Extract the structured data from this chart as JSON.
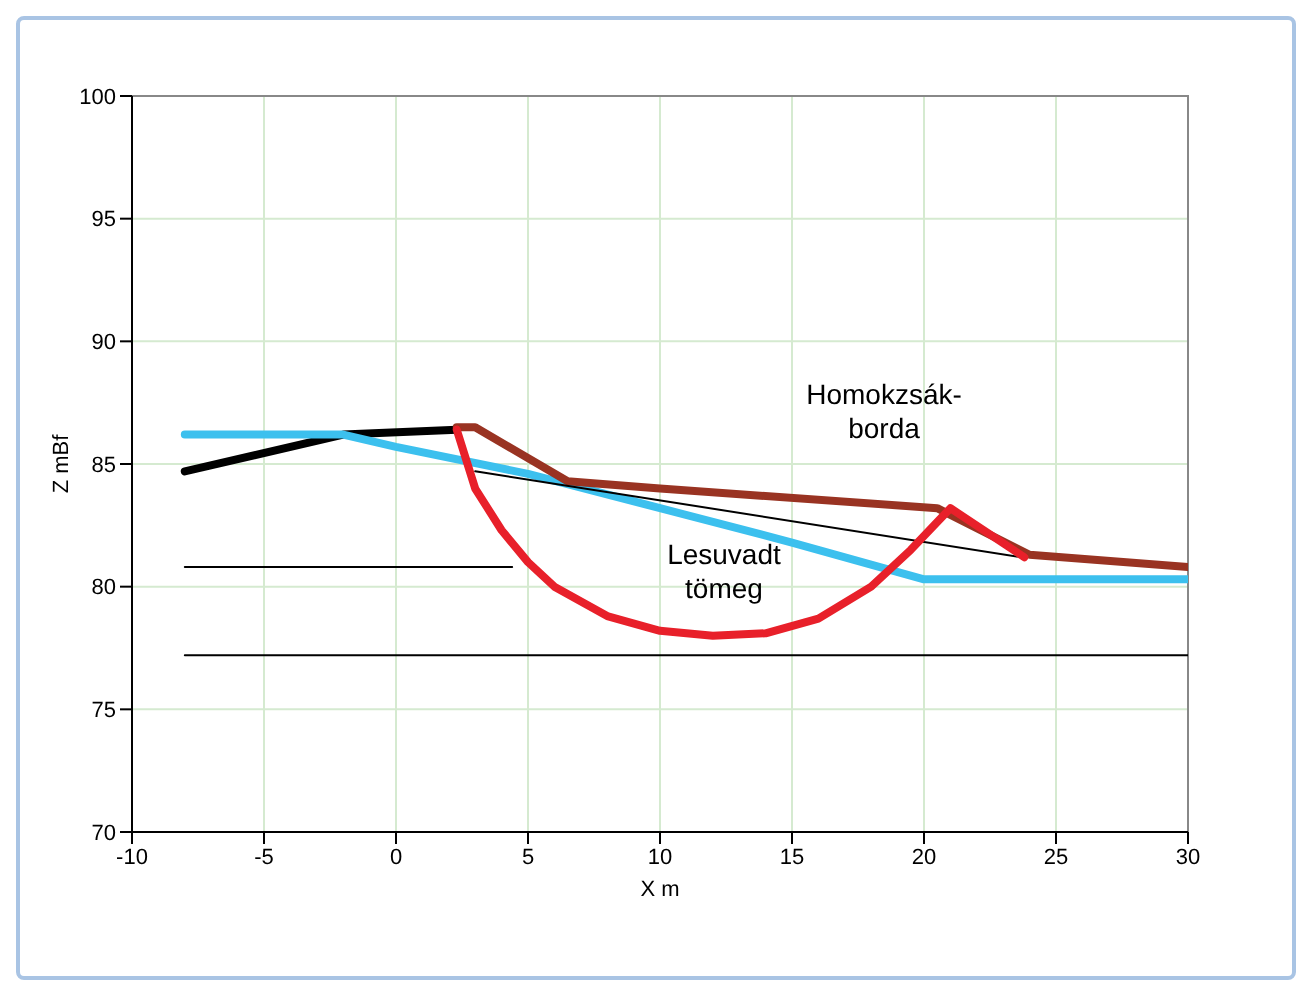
{
  "chart_data": {
    "type": "line",
    "xlabel": "X  m",
    "ylabel": "Z  mBf",
    "xlim": [
      -10,
      30
    ],
    "xticks": [
      -10,
      -5,
      0,
      5,
      10,
      15,
      20,
      25,
      30
    ],
    "ylim": [
      70,
      100
    ],
    "yticks": [
      70,
      75,
      80,
      85,
      90,
      95,
      100
    ],
    "grid": true,
    "series": [
      {
        "color": "#000000",
        "x": [
          -8,
          -2,
          2.3
        ],
        "values": [
          84.7,
          86.2,
          86.4
        ]
      },
      {
        "color": "#3cc0ee",
        "x": [
          -8,
          -2,
          0,
          5,
          10,
          15,
          20,
          30
        ],
        "values": [
          86.2,
          86.2,
          85.7,
          84.6,
          83.2,
          81.8,
          80.3,
          80.3
        ]
      },
      {
        "color": "#993322",
        "x": [
          2.3,
          3,
          6.5,
          10,
          20.5,
          24,
          30
        ],
        "values": [
          86.5,
          86.5,
          84.3,
          84,
          83.2,
          81.3,
          80.8
        ]
      },
      {
        "color": "#000000",
        "x": [
          3,
          23.7
        ],
        "values": [
          84.7,
          81.2
        ]
      },
      {
        "color": "#e8202a",
        "x": [
          2.3,
          3,
          4,
          5,
          6,
          8,
          10,
          12,
          14,
          16,
          18,
          19.5,
          21,
          23.8
        ],
        "values": [
          86.4,
          84,
          82.3,
          81,
          80,
          78.8,
          78.2,
          78,
          78.1,
          78.7,
          80,
          81.5,
          83.2,
          81.2
        ]
      },
      {
        "color": "#000000",
        "x": [
          -8,
          4.4
        ],
        "values": [
          80.8,
          80.8
        ]
      },
      {
        "color": "#000000",
        "x": [
          -8,
          30
        ],
        "values": [
          77.2,
          77.2
        ]
      }
    ],
    "annotations": [
      "Homokzsák-\nborda",
      "Lesuvadt\ntömeg"
    ]
  }
}
